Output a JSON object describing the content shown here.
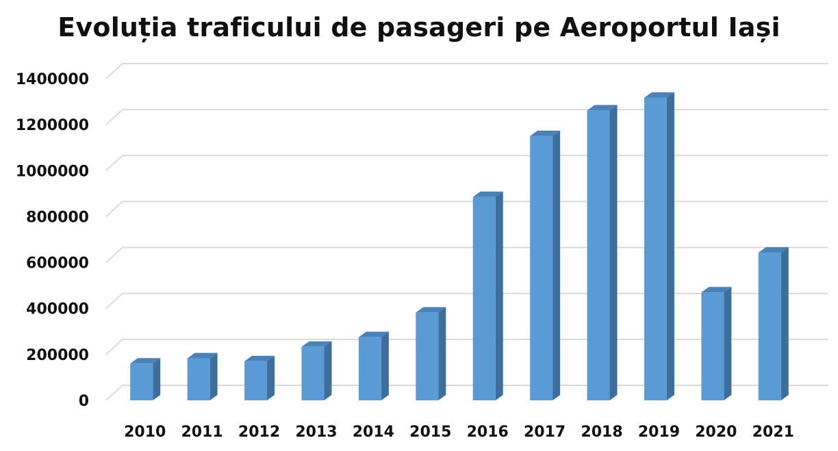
{
  "chart_data": {
    "type": "bar",
    "title": "Evoluția traficului de pasageri pe Aeroportul Iași",
    "xlabel": "",
    "ylabel": "",
    "categories": [
      "2010",
      "2011",
      "2012",
      "2013",
      "2014",
      "2015",
      "2016",
      "2017",
      "2018",
      "2019",
      "2020",
      "2021"
    ],
    "values": [
      160000,
      183000,
      170000,
      233000,
      275000,
      382000,
      885000,
      1150000,
      1262000,
      1317000,
      470000,
      643000
    ],
    "ylim": [
      0,
      1400000
    ],
    "yticks": [
      0,
      200000,
      400000,
      600000,
      800000,
      1000000,
      1200000,
      1400000
    ],
    "grid": true,
    "legend": "none",
    "colors": {
      "bar_front": "#5B9BD5",
      "bar_side": "#3E6F9C",
      "bar_top": "#4A82B7",
      "gridline": "#D9D9D9"
    }
  }
}
